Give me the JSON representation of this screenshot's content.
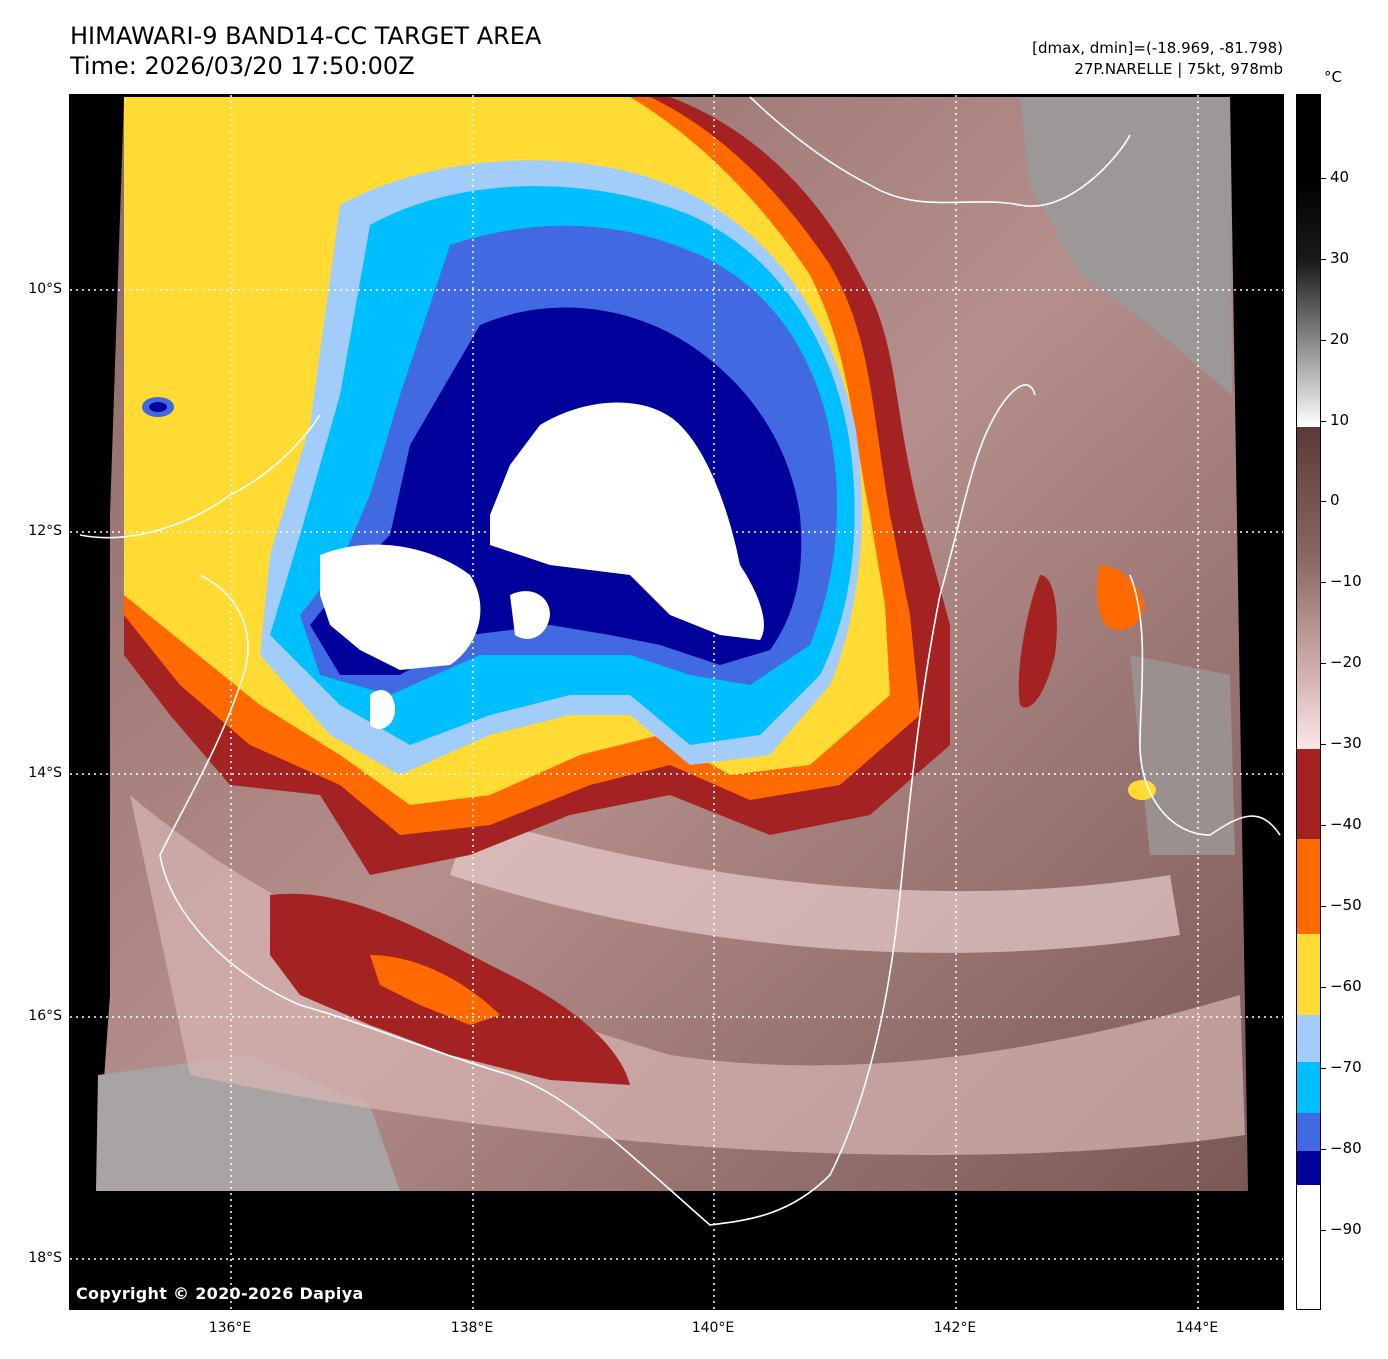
{
  "header": {
    "title_line1": "HIMAWARI-9 BAND14-CC TARGET AREA",
    "title_line2": "Time: 2026/03/20 17:50:00Z",
    "range_info": "[dmax, dmin]=(-18.969, -81.798)",
    "storm_info": "27P.NARELLE | 75kt, 978mb"
  },
  "map": {
    "copyright": "Copyright © 2020-2026 Dapiya",
    "lat_labels": [
      "10°S",
      "12°S",
      "14°S",
      "16°S",
      "18°S"
    ],
    "lon_labels": [
      "136°E",
      "138°E",
      "140°E",
      "142°E",
      "144°E"
    ]
  },
  "colorbar": {
    "unit": "°C",
    "tick_labels": [
      "40",
      "30",
      "20",
      "10",
      "0",
      "−10",
      "−20",
      "−30",
      "−40",
      "−50",
      "−60",
      "−70",
      "−80",
      "−90"
    ],
    "colors": {
      "warm_black": "#000000",
      "gray_light": "#ffffff",
      "brown_mid": "#6b4a48",
      "pink_light": "#f6dede",
      "dark_red": "#a52222",
      "orange": "#ff6a00",
      "yellow": "#ffdb33",
      "light_blue": "#a2cdfb",
      "cyan": "#00bfff",
      "royal_blue": "#4169e1",
      "navy": "#00009a",
      "coldest_white": "#ffffff"
    }
  }
}
